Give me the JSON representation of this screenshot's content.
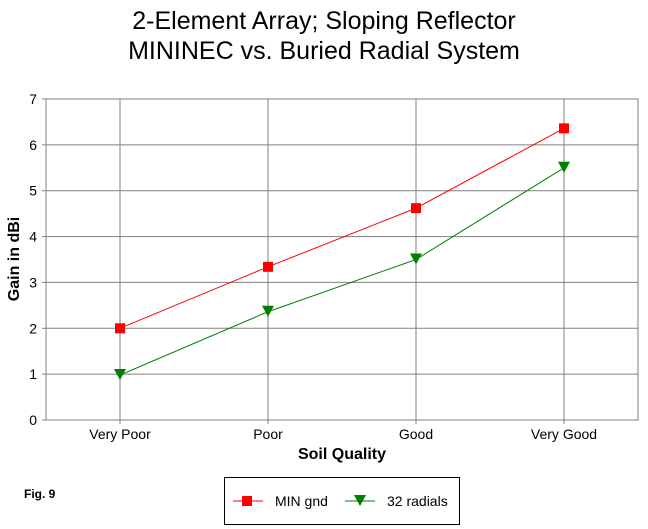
{
  "chart_data": {
    "type": "line",
    "title": "2-Element Array; Sloping Reflector",
    "subtitle": "MININEC vs. Buried Radial System",
    "xlabel": "Soil Quality",
    "ylabel": "Gain in dBi",
    "categories": [
      "Very Poor",
      "Poor",
      "Good",
      "Very Good"
    ],
    "ylim": [
      0,
      7
    ],
    "yticks": [
      "0",
      "1",
      "2",
      "3",
      "4",
      "5",
      "6",
      "7"
    ],
    "grid": true,
    "legend_position": "bottom",
    "series": [
      {
        "name": "MIN gnd",
        "values": [
          2.0,
          3.34,
          4.62,
          6.36
        ],
        "color": "#ff0000",
        "marker": "square"
      },
      {
        "name": "32 radials",
        "values": [
          0.98,
          2.36,
          3.5,
          5.5
        ],
        "color": "#008000",
        "marker": "triangle-down"
      }
    ]
  },
  "figure_label": "Fig. 9"
}
